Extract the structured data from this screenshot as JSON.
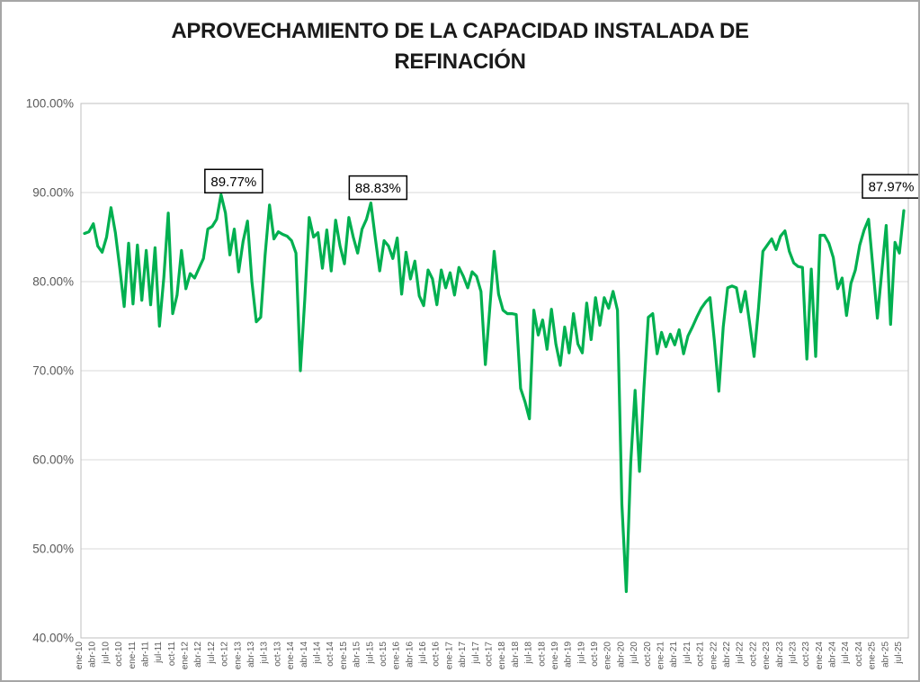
{
  "title": "APROVECHAMIENTO DE LA CAPACIDAD INSTALADA DE REFINACIÓN",
  "colors": {
    "line": "#00B050",
    "grid": "#D9D9D9",
    "axis_text": "#595959",
    "annotation_border": "#000000"
  },
  "chart_data": {
    "type": "line",
    "title": "APROVECHAMIENTO DE LA CAPACIDAD INSTALADA DE REFINACIÓN",
    "unit": "%",
    "ylim": [
      40,
      100
    ],
    "grid": "horizontal",
    "legend": "none",
    "line_color": "#00B050",
    "y_tick_labels": [
      "100.00%",
      "90.00%",
      "80.00%",
      "70.00%",
      "60.00%",
      "50.00%",
      "40.00%"
    ],
    "x_tick_labels": [
      "ene-10",
      "abr-10",
      "jul-10",
      "oct-10",
      "ene-11",
      "abr-11",
      "jul-11",
      "oct-11",
      "ene-12",
      "abr-12",
      "jul-12",
      "oct-12",
      "ene-13",
      "abr-13",
      "jul-13",
      "oct-13",
      "ene-14",
      "abr-14",
      "jul-14",
      "oct-14",
      "ene-15",
      "abr-15",
      "jul-15",
      "oct-15",
      "ene-16",
      "abr-16",
      "jul-16",
      "oct-16",
      "ene-17",
      "abr-17",
      "jul-17",
      "oct-17",
      "ene-18",
      "abr-18",
      "jul-18",
      "oct-18",
      "ene-19",
      "abr-19",
      "jul-19",
      "oct-19",
      "ene-20",
      "abr-20",
      "jul-20",
      "oct-20",
      "ene-21",
      "abr-21",
      "jul-21",
      "oct-21",
      "ene-22",
      "abr-22",
      "jul-22",
      "oct-22",
      "ene-23",
      "abr-23",
      "jul-23",
      "oct-23",
      "ene-24",
      "abr-24",
      "jul-24",
      "oct-24",
      "ene-25",
      "abr-25",
      "jul-25"
    ],
    "months_per_tick": 3,
    "values": [
      85.4,
      85.6,
      86.5,
      84.0,
      83.3,
      85.0,
      88.3,
      85.5,
      81.5,
      77.2,
      84.3,
      77.5,
      84.1,
      77.9,
      83.5,
      77.4,
      83.8,
      75.0,
      80.5,
      87.7,
      76.4,
      78.5,
      83.5,
      79.2,
      80.9,
      80.4,
      81.5,
      82.6,
      85.9,
      86.2,
      87.0,
      89.77,
      87.7,
      83.0,
      85.9,
      81.1,
      84.5,
      86.8,
      80.0,
      75.5,
      76.0,
      83.0,
      88.6,
      84.8,
      85.6,
      85.3,
      85.1,
      84.6,
      83.2,
      70.0,
      78.0,
      87.2,
      85.0,
      85.5,
      81.5,
      85.8,
      81.2,
      86.9,
      84.0,
      82.0,
      87.2,
      85.0,
      83.2,
      85.9,
      87.0,
      88.83,
      84.9,
      81.2,
      84.6,
      84.0,
      82.6,
      84.9,
      78.6,
      83.3,
      80.3,
      82.3,
      78.4,
      77.3,
      81.3,
      80.3,
      77.4,
      81.3,
      79.3,
      81.0,
      78.5,
      81.6,
      80.6,
      79.3,
      81.1,
      80.6,
      78.9,
      70.7,
      77.0,
      83.4,
      78.6,
      76.8,
      76.4,
      76.4,
      76.3,
      68.0,
      66.5,
      64.6,
      76.8,
      74.0,
      75.7,
      72.4,
      76.9,
      73.0,
      70.6,
      74.9,
      72.0,
      76.4,
      73.0,
      72.0,
      77.6,
      73.5,
      78.2,
      75.1,
      78.2,
      77.0,
      78.9,
      76.8,
      55.0,
      45.2,
      59.6,
      67.8,
      58.7,
      68.0,
      76.0,
      76.4,
      71.9,
      74.3,
      72.7,
      74.1,
      72.9,
      74.6,
      71.9,
      73.9,
      74.9,
      76.0,
      77.0,
      77.7,
      78.2,
      73.3,
      67.7,
      74.9,
      79.3,
      79.5,
      79.3,
      76.6,
      78.9,
      75.3,
      71.6,
      77.0,
      83.4,
      84.1,
      84.8,
      83.6,
      85.1,
      85.7,
      83.4,
      82.1,
      81.7,
      81.6,
      71.3,
      81.4,
      71.6,
      85.2,
      85.2,
      84.3,
      82.7,
      79.2,
      80.4,
      76.2,
      79.8,
      81.3,
      84.1,
      85.8,
      87.0,
      81.5,
      75.9,
      81.1,
      86.3,
      75.2,
      84.4,
      83.2,
      87.97
    ],
    "annotations": [
      {
        "label": "89.77%",
        "index": 31
      },
      {
        "label": "88.83%",
        "index": 65
      },
      {
        "label": "87.97%",
        "index": 186
      }
    ]
  }
}
